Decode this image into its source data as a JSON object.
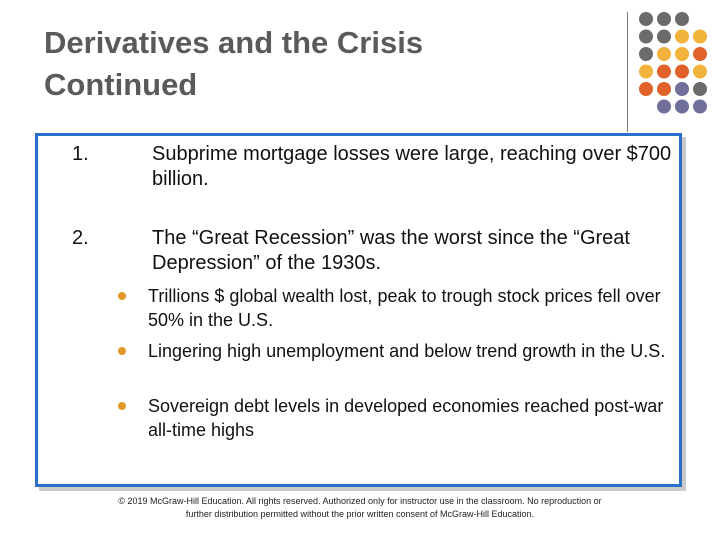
{
  "slide": {
    "title_line1": "Derivatives and the Crisis",
    "title_line2": "Continued"
  },
  "list": [
    {
      "number": "1.",
      "text": "Subprime mortgage losses were large, reaching over $700 billion."
    },
    {
      "number": "2.",
      "text": "The “Great Recession” was the worst since the “Great Depression” of the 1930s."
    }
  ],
  "sub_bullets": [
    "Trillions $ global wealth lost, peak to trough stock prices fell over 50% in the U.S.",
    "Lingering high unemployment and below trend growth in the U.S.",
    "Sovereign debt levels in developed economies reached post-war all-time highs"
  ],
  "footer": {
    "copyright": "© 2019 McGraw-Hill Education. All rights reserved. Authorized only for instructor use in the classroom. No reproduction or further distribution permitted without the prior written consent of McGraw-Hill Education."
  },
  "colors": {
    "title": "#5a5a5a",
    "box_border": "#2a6fc9",
    "dot_gray": "#6b6b6b",
    "dot_yellow": "#f2b33d",
    "dot_orange": "#e0622a",
    "dot_slate": "#6f6f9a"
  }
}
